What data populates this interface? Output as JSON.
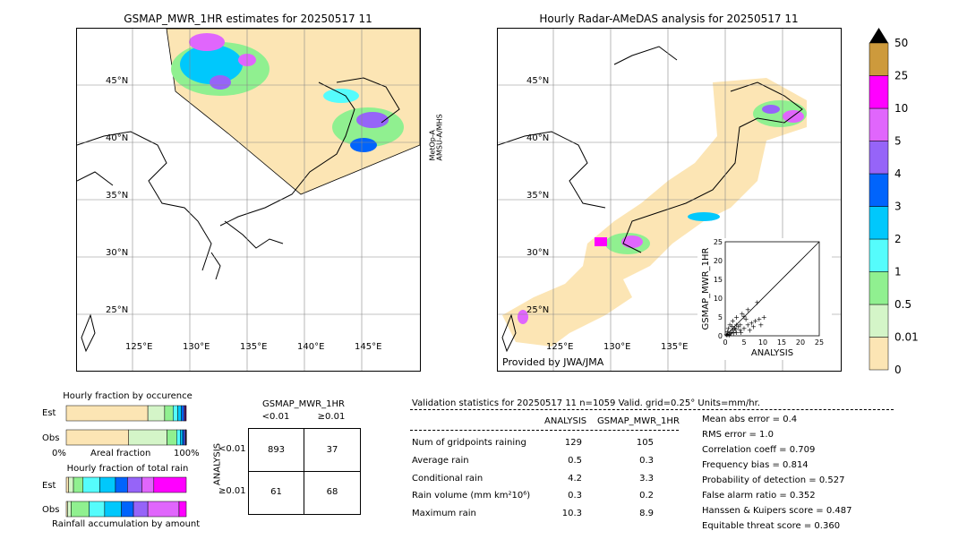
{
  "left_map": {
    "title": "GSMAP_MWR_1HR estimates for 20250517 11",
    "side_label_1": "MetOp-A",
    "side_label_2": "AMSU-A/MHS",
    "lat_labels": [
      "45°N",
      "40°N",
      "35°N",
      "30°N",
      "25°N"
    ],
    "lon_labels": [
      "125°E",
      "130°E",
      "135°E",
      "140°E",
      "145°E"
    ]
  },
  "right_map": {
    "title": "Hourly Radar-AMeDAS analysis for 20250517 11",
    "lat_labels": [
      "45°N",
      "40°N",
      "35°N",
      "30°N",
      "25°N"
    ],
    "lon_labels": [
      "125°E",
      "130°E",
      "135°E"
    ],
    "credit": "Provided by JWA/JMA"
  },
  "colorbar": {
    "labels": [
      "50",
      "25",
      "10",
      "5",
      "4",
      "3",
      "2",
      "1",
      "0.5",
      "0.01",
      "0"
    ],
    "colors": [
      "#fce5b4",
      "#d4f5c8",
      "#90f090",
      "#55fcfc",
      "#00c8fc",
      "#0064fc",
      "#9664f8",
      "#e066fc",
      "#ff00ff",
      "#cd9a3c",
      "#000000"
    ]
  },
  "chart_data": [
    {
      "type": "scatter",
      "title": "",
      "xlabel": "ANALYSIS",
      "ylabel": "GSMAP_MWR_1HR",
      "xlim": [
        0,
        25
      ],
      "ylim": [
        0,
        25
      ],
      "xticks": [
        "0",
        "5",
        "10",
        "15",
        "20",
        "25"
      ],
      "yticks": [
        "0",
        "5",
        "10",
        "15",
        "20",
        "25"
      ],
      "points": [
        [
          0.5,
          0.3
        ],
        [
          1,
          0.5
        ],
        [
          1.5,
          1
        ],
        [
          2,
          1.5
        ],
        [
          0.8,
          2
        ],
        [
          1.2,
          3
        ],
        [
          2.5,
          2
        ],
        [
          3,
          1
        ],
        [
          3.5,
          2.5
        ],
        [
          4,
          1.5
        ],
        [
          2,
          4
        ],
        [
          5,
          2
        ],
        [
          6,
          3
        ],
        [
          7,
          3.5
        ],
        [
          8,
          4
        ],
        [
          9,
          4.5
        ],
        [
          10.3,
          5
        ],
        [
          6,
          7
        ],
        [
          4,
          3
        ],
        [
          3,
          5
        ],
        [
          1,
          0.2
        ],
        [
          0.6,
          1.2
        ],
        [
          2.2,
          0.8
        ],
        [
          5.5,
          4.5
        ],
        [
          7.5,
          2.5
        ],
        [
          8.5,
          8.9
        ],
        [
          4.5,
          6
        ],
        [
          3,
          3
        ],
        [
          2.8,
          1.8
        ],
        [
          1.8,
          2.6
        ],
        [
          6.5,
          1.5
        ],
        [
          5,
          5.2
        ],
        [
          9.5,
          3
        ],
        [
          0.3,
          0.4
        ],
        [
          1.4,
          0.6
        ],
        [
          4.2,
          0.9
        ]
      ]
    },
    {
      "type": "bar",
      "title": "Hourly fraction by occurence",
      "rows": [
        "Est",
        "Obs"
      ],
      "xlabel": "Areal fraction",
      "xticks": [
        "0%",
        "100%"
      ],
      "segment_colors": [
        "#fce5b4",
        "#d4f5c8",
        "#90f090",
        "#55fcfc",
        "#00c8fc",
        "#0064fc",
        "#9664f8",
        "#e066fc",
        "#ff00ff"
      ],
      "series": [
        {
          "name": "Est",
          "values": [
            0.68,
            0.14,
            0.07,
            0.04,
            0.03,
            0.02,
            0.01,
            0.005,
            0.005
          ]
        },
        {
          "name": "Obs",
          "values": [
            0.52,
            0.32,
            0.08,
            0.03,
            0.02,
            0.015,
            0.01,
            0.003,
            0.002
          ]
        }
      ]
    },
    {
      "type": "bar",
      "title": "Hourly fraction of total rain",
      "rows": [
        "Est",
        "Obs"
      ],
      "xlabel": "Rainfall accumulation by amount",
      "segment_colors": [
        "#fce5b4",
        "#d4f5c8",
        "#90f090",
        "#55fcfc",
        "#00c8fc",
        "#0064fc",
        "#9664f8",
        "#e066fc",
        "#ff00ff"
      ],
      "series": [
        {
          "name": "Est",
          "values": [
            0.02,
            0.04,
            0.08,
            0.14,
            0.13,
            0.1,
            0.12,
            0.1,
            0.27
          ]
        },
        {
          "name": "Obs",
          "values": [
            0.01,
            0.03,
            0.15,
            0.13,
            0.14,
            0.1,
            0.12,
            0.26,
            0.06
          ]
        }
      ]
    },
    {
      "type": "table",
      "title": "GSMAP_MWR_1HR",
      "col_headers": [
        "<0.01",
        "≥0.01"
      ],
      "row_headers": [
        "<0.01",
        "≥0.01"
      ],
      "row_axis_label": "ANALYSIS",
      "cells": [
        [
          "893",
          "37"
        ],
        [
          "61",
          "68"
        ]
      ]
    }
  ],
  "stats": {
    "header": "Validation statistics for 20250517 11  n=1059 Valid. grid=0.25° Units=mm/hr.",
    "col_analysis": "ANALYSIS",
    "col_gsmap": "GSMAP_MWR_1HR",
    "rows": [
      {
        "label": "Num of gridpoints raining",
        "analysis": "129",
        "gsmap": "105"
      },
      {
        "label": "Average rain",
        "analysis": "0.5",
        "gsmap": "0.3"
      },
      {
        "label": "Conditional rain",
        "analysis": "4.2",
        "gsmap": "3.3"
      },
      {
        "label": "Rain volume (mm km²10⁶)",
        "analysis": "0.3",
        "gsmap": "0.2"
      },
      {
        "label": "Maximum rain",
        "analysis": "10.3",
        "gsmap": "8.9"
      }
    ],
    "scores": [
      "Mean abs error =    0.4",
      "RMS error =    1.0",
      "Correlation coeff =  0.709",
      "Frequency bias =  0.814",
      "Probability of detection =  0.527",
      "False alarm ratio =  0.352",
      "Hanssen & Kuipers score =  0.487",
      "Equitable threat score =  0.360"
    ]
  }
}
